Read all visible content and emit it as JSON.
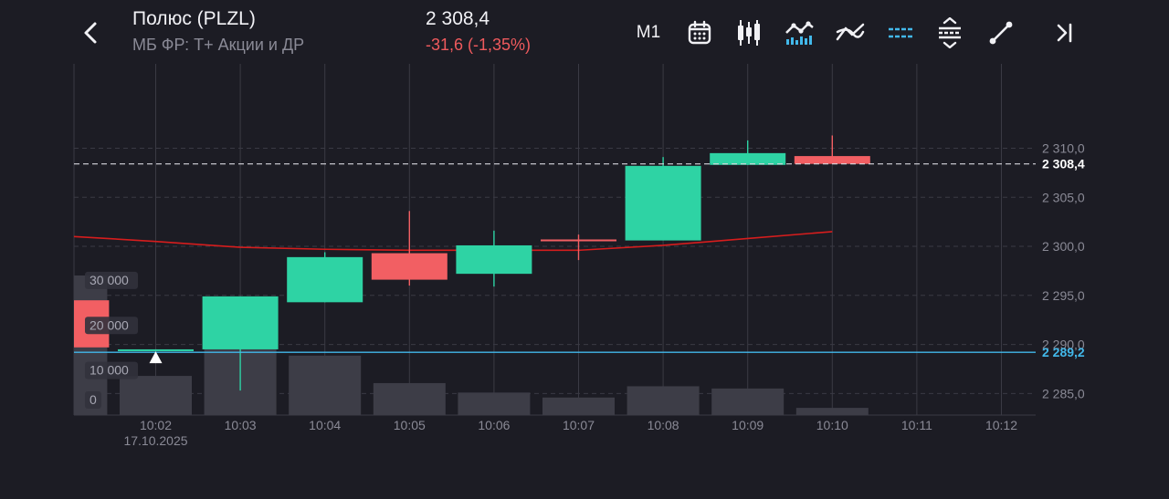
{
  "header": {
    "back_icon": "chevron-left-icon",
    "title": "Полюс (PLZL)",
    "subtitle": "МБ ФР: Т+ Акции и ДР",
    "price": "2 308,4",
    "change": "-31,6 (-1,35%)"
  },
  "toolbar": {
    "timeframe": "M1",
    "icons": [
      "calendar-icon",
      "bar-chart-icon",
      "line-indicator-icon",
      "crossover-icon",
      "horizontal-lines-icon",
      "expand-vertical-icon",
      "trend-line-icon",
      "jump-to-end-icon"
    ]
  },
  "chart_data": {
    "type": "candlestick",
    "date_label": "17.10.2025",
    "x_ticks": [
      "10:02",
      "10:03",
      "10:04",
      "10:05",
      "10:06",
      "10:07",
      "10:08",
      "10:09",
      "10:10",
      "10:11",
      "10:12"
    ],
    "y_ticks": [
      "2 310,0",
      "2 305,0",
      "2 300,0",
      "2 295,0",
      "2 290,0",
      "2 285,0"
    ],
    "ylim": [
      2282.8,
      2318.6
    ],
    "y_tick_values": [
      2310,
      2305,
      2300,
      2295,
      2290,
      2285
    ],
    "volume_ticks": [
      "30 000",
      "20 000",
      "10 000",
      "0"
    ],
    "volume_tick_values": [
      30000,
      20000,
      10000,
      0
    ],
    "volume_max": 31000,
    "candles": [
      {
        "time": "10:01",
        "open": 2294.5,
        "close": 2289.7,
        "high": 2294.5,
        "low": 2289.4
      },
      {
        "time": "10:02",
        "open": 2289.4,
        "close": 2289.5,
        "high": 2289.5,
        "low": 2289.3
      },
      {
        "time": "10:03",
        "open": 2289.5,
        "close": 2294.9,
        "high": 2294.9,
        "low": 2285.3
      },
      {
        "time": "10:04",
        "open": 2294.3,
        "close": 2298.9,
        "high": 2299.4,
        "low": 2294.3
      },
      {
        "time": "10:05",
        "open": 2299.3,
        "close": 2296.6,
        "high": 2303.6,
        "low": 2296.0
      },
      {
        "time": "10:06",
        "open": 2297.2,
        "close": 2300.1,
        "high": 2301.6,
        "low": 2295.9
      },
      {
        "time": "10:07",
        "open": 2300.7,
        "close": 2300.6,
        "high": 2301.2,
        "low": 2298.6
      },
      {
        "time": "10:08",
        "open": 2300.6,
        "close": 2308.2,
        "high": 2309.1,
        "low": 2300.6
      },
      {
        "time": "10:09",
        "open": 2308.3,
        "close": 2309.5,
        "high": 2310.8,
        "low": 2308.3
      },
      {
        "time": "10:10",
        "open": 2309.2,
        "close": 2308.4,
        "high": 2311.3,
        "low": 2308.4
      }
    ],
    "volumes": [
      {
        "time": "10:01",
        "value": 31000
      },
      {
        "time": "10:02",
        "value": 8700
      },
      {
        "time": "10:03",
        "value": 20500
      },
      {
        "time": "10:04",
        "value": 13200
      },
      {
        "time": "10:05",
        "value": 7100
      },
      {
        "time": "10:06",
        "value": 5000
      },
      {
        "time": "10:07",
        "value": 3900
      },
      {
        "time": "10:08",
        "value": 6400
      },
      {
        "time": "10:09",
        "value": 5900
      },
      {
        "time": "10:10",
        "value": 1600
      }
    ],
    "moving_average": [
      {
        "time": "10:01",
        "value": 2301.0
      },
      {
        "time": "10:02",
        "value": 2300.5
      },
      {
        "time": "10:03",
        "value": 2299.9
      },
      {
        "time": "10:04",
        "value": 2299.7
      },
      {
        "time": "10:05",
        "value": 2299.6
      },
      {
        "time": "10:06",
        "value": 2299.6
      },
      {
        "time": "10:07",
        "value": 2299.6
      },
      {
        "time": "10:08",
        "value": 2300.1
      },
      {
        "time": "10:09",
        "value": 2300.8
      },
      {
        "time": "10:10",
        "value": 2301.5
      }
    ],
    "last_price": {
      "value": 2308.4,
      "label": "2 308,4"
    },
    "level_line": {
      "value": 2289.2,
      "label": "2 289,2"
    },
    "colors": {
      "up": "#2ed3a4",
      "down": "#f25f63",
      "volume": "#3d3d47",
      "ma": "#d61d1d",
      "level": "#42b8ea",
      "grid": "#3a3a44",
      "axis_text": "#8a8a96",
      "background": "#1c1c24"
    }
  }
}
